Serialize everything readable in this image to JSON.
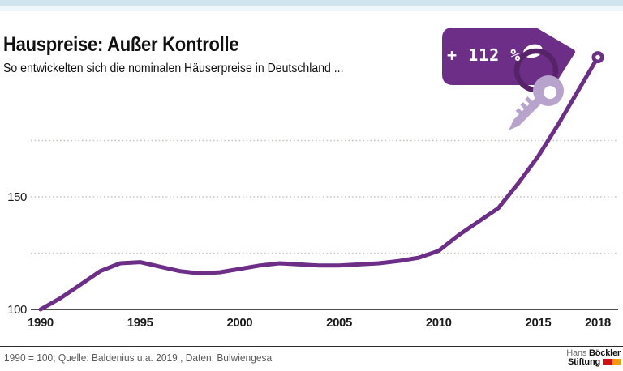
{
  "page": {
    "title": "Hauspreise: Außer Kontrolle",
    "subtitle": "So entwickelten sich die nominalen Häuserpreise in Deutschland ...",
    "accent_color": "#cfe4ec"
  },
  "chart_data": {
    "type": "line",
    "title": "Hauspreise: Außer Kontrolle",
    "subtitle": "So entwickelten sich die nominalen Häuserpreise in Deutschland ...",
    "x": [
      1990,
      1991,
      1992,
      1993,
      1994,
      1995,
      1996,
      1997,
      1998,
      1999,
      2000,
      2001,
      2002,
      2003,
      2004,
      2005,
      2006,
      2007,
      2008,
      2009,
      2010,
      2011,
      2012,
      2013,
      2014,
      2015,
      2016,
      2017,
      2018
    ],
    "series": [
      {
        "name": "Nominale Häuserpreise in Deutschland (Index, 1990 = 100)",
        "values": [
          100,
          105,
          111,
          117,
          120.5,
          121,
          119,
          117,
          116,
          116.5,
          118,
          119.5,
          120.5,
          120,
          119.5,
          119.5,
          120,
          120.5,
          121.5,
          123,
          126,
          133,
          139,
          145,
          156,
          168,
          182,
          197,
          212
        ]
      }
    ],
    "xlim": [
      1990,
      2018
    ],
    "ylim": [
      100,
      215
    ],
    "xticks": [
      1990,
      1995,
      2000,
      2005,
      2010,
      2015,
      2018
    ],
    "ytick_labels": [
      100,
      150
    ],
    "gridlines_dotted": [
      125,
      150,
      175
    ],
    "baseline_value": 100,
    "grid": "dotted horizontal",
    "legend_position": "none",
    "line_color": "#6d2e87",
    "endpoint": {
      "year": 2018,
      "value": 212,
      "marker": "open-circle"
    },
    "badge": {
      "label": "+ 112 %",
      "tag_color": "#6d2e87",
      "ring_color": "#572368",
      "key_color": "#b7a3cb"
    }
  },
  "footer": {
    "note": "1990 = 100; Quelle: Baldenius u.a. 2019 , Daten: Bulwiengesa",
    "logo": {
      "line1_regular": "Hans",
      "line1_bold": "Böckler",
      "line2_bold": "Stiftung",
      "bar_colors": [
        "#cc1212",
        "#f59d00"
      ]
    }
  }
}
